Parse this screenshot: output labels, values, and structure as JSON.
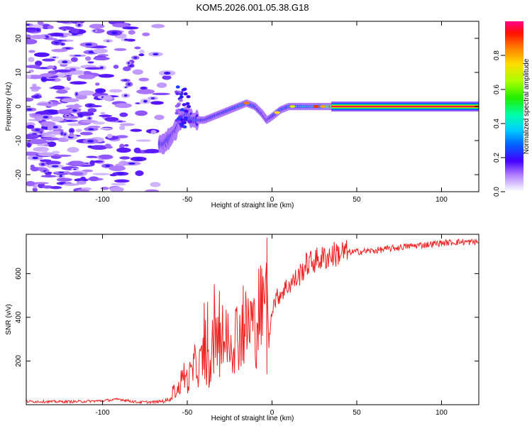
{
  "title": "KOM5.2026.001.05.38.G18",
  "chart_data": [
    {
      "type": "heatmap",
      "name": "spectrogram",
      "xlabel": "Height of straight line (km)",
      "ylabel": "Frequency (Hz)",
      "xlim": [
        -145,
        122
      ],
      "ylim": [
        -25,
        25
      ],
      "xticks": [
        -100,
        -50,
        0,
        50,
        100
      ],
      "xtick_labels": [
        "-100",
        "-50",
        "0",
        "50",
        "100"
      ],
      "yticks": [
        -20,
        -10,
        0,
        10,
        20
      ],
      "ytick_labels": [
        "-20",
        "-10",
        "0",
        "10",
        "20"
      ],
      "colorbar": {
        "label": "Normalized spectral amplitude",
        "range": [
          0,
          1
        ],
        "ticks": [
          0,
          0.2,
          0.4,
          0.6,
          0.8
        ],
        "tick_labels": [
          "0.0",
          "0.2",
          "0.4",
          "0.6",
          "0.8"
        ]
      },
      "ridge": {
        "description_points_x": [
          -64,
          -60,
          -57,
          -54,
          -50,
          -47,
          -44,
          -40,
          -35,
          -30,
          -25,
          -20,
          -15,
          -10,
          -6,
          -3,
          0,
          5,
          10,
          20,
          30,
          35,
          122
        ],
        "frequency_hz": [
          -11,
          -9,
          -7,
          -4,
          -2,
          -4,
          -4,
          -4,
          -3,
          -2,
          -1,
          0,
          1,
          0,
          -2,
          -4,
          -3,
          -1,
          0,
          0,
          0,
          0,
          0
        ],
        "amplitude": [
          0.25,
          0.25,
          0.2,
          0.22,
          0.25,
          0.3,
          0.3,
          0.25,
          0.28,
          0.3,
          0.32,
          0.35,
          0.45,
          0.3,
          0.2,
          0.2,
          0.3,
          0.35,
          0.4,
          0.45,
          0.5,
          0.9,
          0.95
        ]
      },
      "noise_region_x": [
        -145,
        -65
      ]
    },
    {
      "type": "line",
      "name": "snr",
      "xlabel": "Height of straight line (km)",
      "ylabel": "SNR (v/v)",
      "xlim": [
        -145,
        122
      ],
      "ylim": [
        0,
        780
      ],
      "xticks": [
        -100,
        -50,
        0,
        50,
        100
      ],
      "xtick_labels": [
        "-100",
        "-50",
        "0",
        "50",
        "100"
      ],
      "yticks": [
        200,
        400,
        600
      ],
      "ytick_labels": [
        "200",
        "400",
        "600"
      ],
      "color": "#ee2222",
      "series": [
        {
          "name": "SNR",
          "x": [
            -145,
            -130,
            -115,
            -100,
            -90,
            -80,
            -70,
            -62,
            -58,
            -55,
            -52,
            -50,
            -47,
            -45,
            -43,
            -40,
            -37,
            -35,
            -30,
            -25,
            -20,
            -15,
            -12,
            -10,
            -8,
            -5,
            -3,
            -2,
            0,
            2,
            5,
            10,
            15,
            20,
            25,
            30,
            35,
            40,
            50,
            60,
            70,
            80,
            90,
            100,
            110,
            122
          ],
          "values": [
            15,
            14,
            14,
            18,
            25,
            12,
            12,
            18,
            60,
            75,
            140,
            110,
            150,
            190,
            170,
            230,
            150,
            260,
            280,
            300,
            330,
            350,
            390,
            330,
            430,
            420,
            650,
            260,
            450,
            480,
            510,
            550,
            580,
            640,
            660,
            670,
            685,
            695,
            700,
            705,
            715,
            725,
            732,
            740,
            745,
            745
          ],
          "spikes": [
            {
              "x": -3,
              "y": 765
            },
            {
              "x": -3,
              "y": 140
            },
            {
              "x": -31,
              "y": 520
            },
            {
              "x": -38,
              "y": 470
            },
            {
              "x": -17,
              "y": 545
            }
          ]
        }
      ]
    }
  ]
}
